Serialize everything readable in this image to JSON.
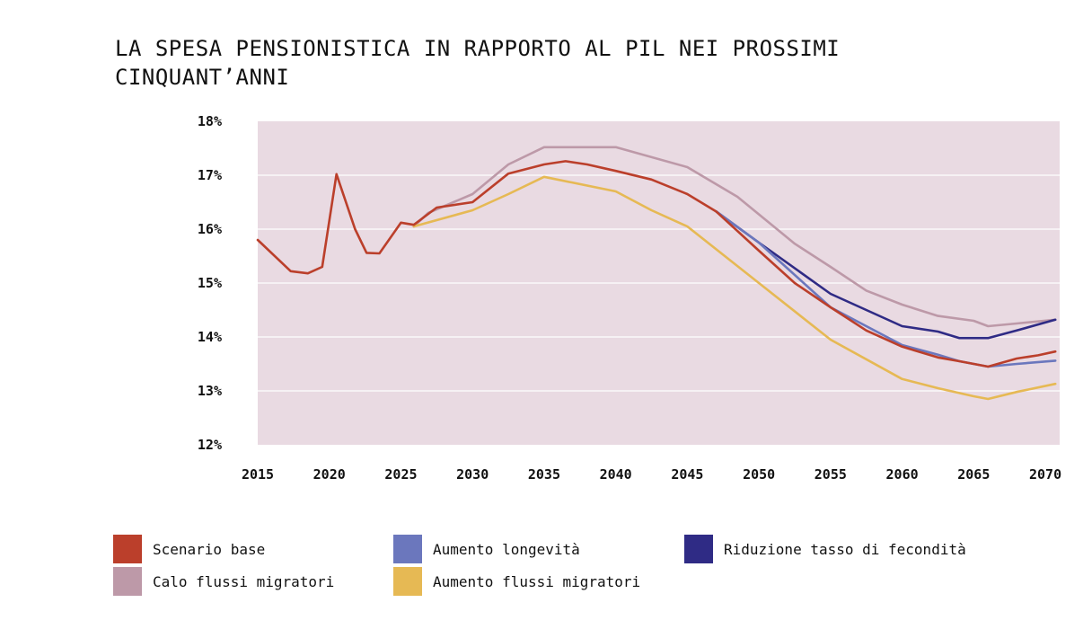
{
  "chart_data": {
    "type": "line",
    "title": "LA SPESA PENSIONISTICA IN RAPPORTO AL PIL NEI PROSSIMI CINQUANT’ANNI",
    "xlabel": "",
    "ylabel": "",
    "xlim": [
      2015,
      2071
    ],
    "ylim": [
      12,
      18
    ],
    "x_ticks": [
      2015,
      2020,
      2025,
      2030,
      2035,
      2040,
      2045,
      2050,
      2055,
      2060,
      2065,
      2070
    ],
    "y_ticks": [
      12,
      13,
      14,
      15,
      16,
      17,
      18
    ],
    "y_tick_labels": [
      "12%",
      "13%",
      "14%",
      "15%",
      "16%",
      "17%",
      "18%"
    ],
    "grid": true,
    "background_color": "#e9dae2",
    "legend_position": "bottom",
    "series": [
      {
        "name": "Calo flussi migratori",
        "color": "#bd99a8",
        "points": [
          [
            2025.9,
            16.05
          ],
          [
            2026.9,
            16.3
          ],
          [
            2030,
            16.65
          ],
          [
            2032.5,
            17.2
          ],
          [
            2035,
            17.52
          ],
          [
            2040,
            17.52
          ],
          [
            2045,
            17.15
          ],
          [
            2048.5,
            16.6
          ],
          [
            2052.5,
            15.73
          ],
          [
            2055,
            15.3
          ],
          [
            2057.5,
            14.86
          ],
          [
            2060,
            14.6
          ],
          [
            2062.5,
            14.39
          ],
          [
            2065,
            14.3
          ],
          [
            2066,
            14.2
          ],
          [
            2068,
            14.25
          ],
          [
            2070.7,
            14.32
          ]
        ]
      },
      {
        "name": "Aumento flussi migratori",
        "color": "#e6b954",
        "points": [
          [
            2025.9,
            16.05
          ],
          [
            2030,
            16.35
          ],
          [
            2032.5,
            16.65
          ],
          [
            2035,
            16.97
          ],
          [
            2040,
            16.7
          ],
          [
            2042.5,
            16.35
          ],
          [
            2045,
            16.05
          ],
          [
            2050,
            15.0
          ],
          [
            2055,
            13.95
          ],
          [
            2060,
            13.22
          ],
          [
            2062.5,
            13.05
          ],
          [
            2065,
            12.9
          ],
          [
            2066,
            12.85
          ],
          [
            2068,
            12.98
          ],
          [
            2070.7,
            13.13
          ]
        ]
      },
      {
        "name": "Riduzione tasso di fecondità",
        "color": "#2f2b85",
        "points": [
          [
            2047,
            16.33
          ],
          [
            2050,
            15.75
          ],
          [
            2055,
            14.8
          ],
          [
            2057.5,
            14.5
          ],
          [
            2060,
            14.2
          ],
          [
            2062.5,
            14.1
          ],
          [
            2064,
            13.98
          ],
          [
            2065,
            13.98
          ],
          [
            2066,
            13.98
          ],
          [
            2068,
            14.12
          ],
          [
            2070.7,
            14.32
          ]
        ]
      },
      {
        "name": "Aumento longevità",
        "color": "#6b77bd",
        "points": [
          [
            2047,
            16.33
          ],
          [
            2050,
            15.75
          ],
          [
            2055,
            14.55
          ],
          [
            2057.5,
            14.2
          ],
          [
            2060,
            13.85
          ],
          [
            2062.5,
            13.67
          ],
          [
            2064,
            13.55
          ],
          [
            2066,
            13.45
          ],
          [
            2068,
            13.5
          ],
          [
            2070.7,
            13.56
          ]
        ]
      },
      {
        "name": "Scenario base",
        "color": "#bb3f2b",
        "points": [
          [
            2015,
            15.8
          ],
          [
            2017.3,
            15.22
          ],
          [
            2018.5,
            15.18
          ],
          [
            2019.5,
            15.3
          ],
          [
            2020.5,
            17.02
          ],
          [
            2021.8,
            16.0
          ],
          [
            2022.6,
            15.56
          ],
          [
            2023.5,
            15.55
          ],
          [
            2025,
            16.12
          ],
          [
            2025.9,
            16.08
          ],
          [
            2027.5,
            16.4
          ],
          [
            2030,
            16.5
          ],
          [
            2032.5,
            17.03
          ],
          [
            2035,
            17.2
          ],
          [
            2036.5,
            17.26
          ],
          [
            2038,
            17.2
          ],
          [
            2040,
            17.08
          ],
          [
            2042.5,
            16.92
          ],
          [
            2045,
            16.65
          ],
          [
            2047,
            16.33
          ],
          [
            2050,
            15.6
          ],
          [
            2052.5,
            15.0
          ],
          [
            2055,
            14.55
          ],
          [
            2057.5,
            14.12
          ],
          [
            2060,
            13.82
          ],
          [
            2062.5,
            13.62
          ],
          [
            2064,
            13.55
          ],
          [
            2066,
            13.45
          ],
          [
            2068,
            13.6
          ],
          [
            2069.5,
            13.66
          ],
          [
            2070.7,
            13.73
          ]
        ]
      }
    ]
  },
  "legend": [
    {
      "label": "Scenario base",
      "color": "#bb3f2b"
    },
    {
      "label": "Aumento longevità",
      "color": "#6b77bd"
    },
    {
      "label": "Riduzione tasso di fecondità",
      "color": "#2f2b85"
    },
    {
      "label": "Calo flussi migratori",
      "color": "#bd99a8"
    },
    {
      "label": "Aumento flussi migratori",
      "color": "#e6b954"
    }
  ]
}
